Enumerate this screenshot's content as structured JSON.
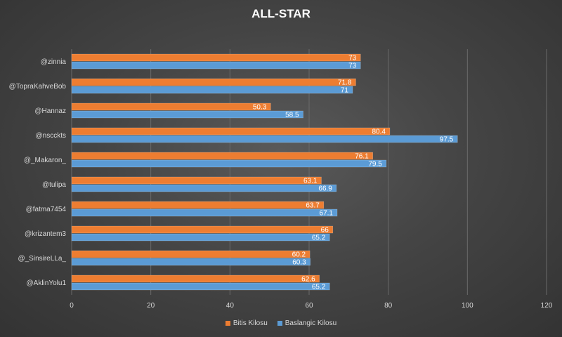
{
  "chart_data": {
    "type": "bar",
    "orientation": "horizontal",
    "title": "ALL-STAR",
    "categories": [
      "@zinnia",
      "@TopraKahveBob",
      "@Hannaz",
      "@nscckts",
      "@_Makaron_",
      "@tulipa",
      "@fatma7454",
      "@krizantem3",
      "@_SinsireLLa_",
      "@AklinYolu1"
    ],
    "series": [
      {
        "name": "Bitis Kilosu",
        "color": "#ed7d31",
        "values": [
          73,
          71.8,
          50.3,
          80.4,
          76.1,
          63.1,
          63.7,
          66,
          60.2,
          62.6
        ],
        "labels": [
          "73",
          "71.8",
          "50.3",
          "80.4",
          "76.1",
          "63.1",
          "63.7",
          "66",
          "60.2",
          "62.6"
        ]
      },
      {
        "name": "Baslangic Kilosu",
        "color": "#5b9bd5",
        "values": [
          73,
          71,
          58.5,
          97.5,
          79.5,
          66.9,
          67.1,
          65.2,
          60.3,
          65.2
        ],
        "labels": [
          "73",
          "71",
          "58.5",
          "97.5",
          "79.5",
          "66.9",
          "67.1",
          "65.2",
          "60.3",
          "65.2"
        ]
      }
    ],
    "xlim": [
      0,
      120
    ],
    "xticks": [
      "0",
      "20",
      "40",
      "60",
      "80",
      "100",
      "120"
    ],
    "grid": true,
    "legend_position": "bottom"
  }
}
